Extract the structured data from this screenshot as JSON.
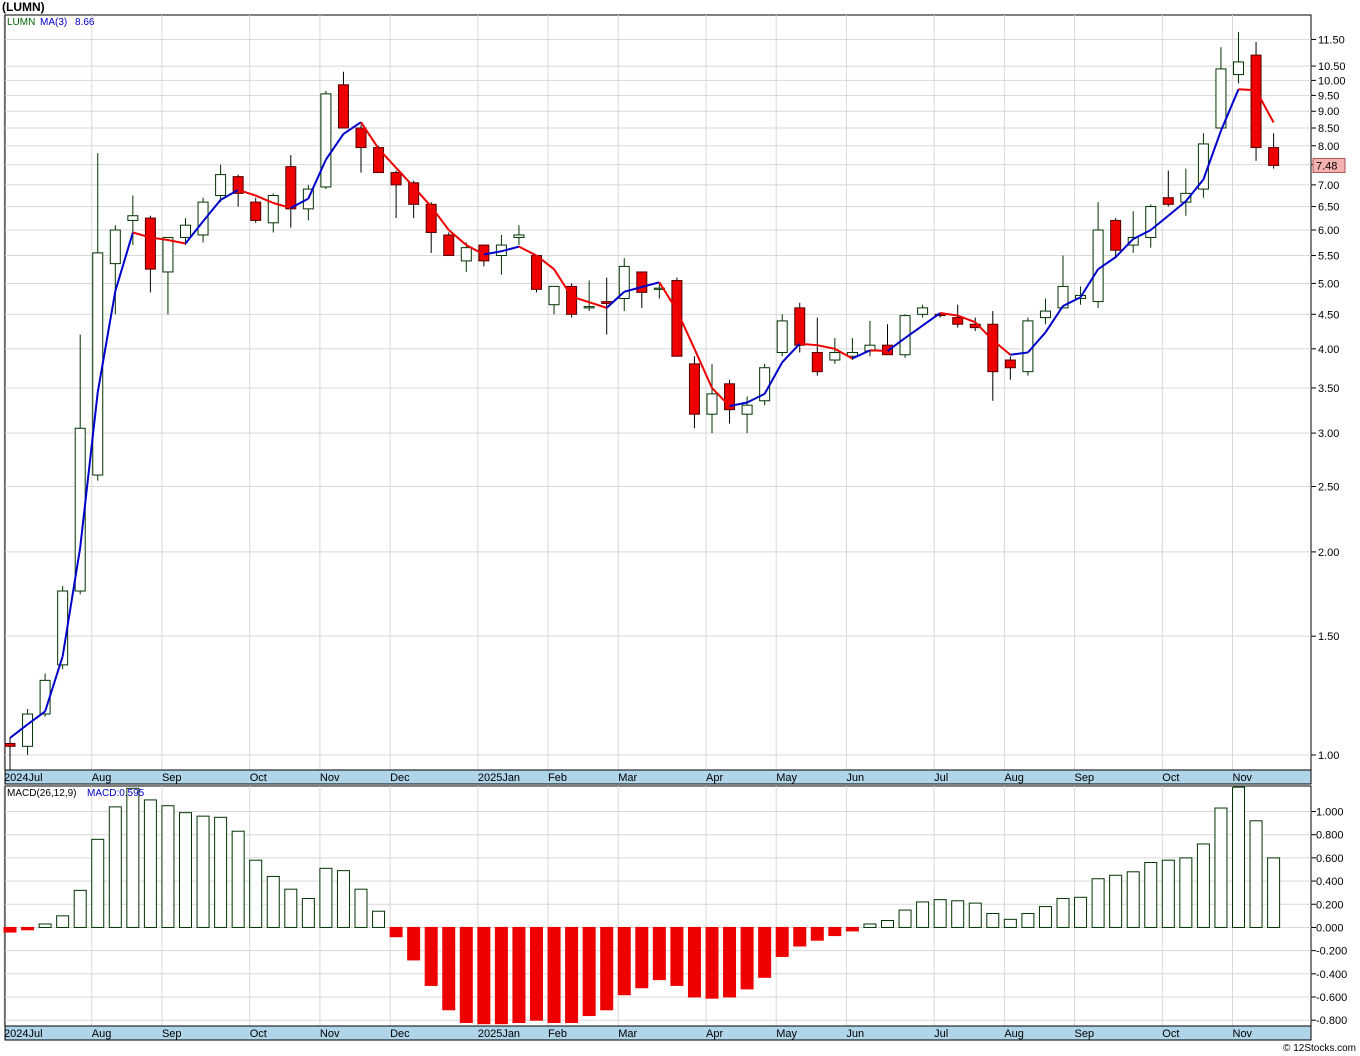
{
  "title": "(LUMN)",
  "footer": "© 12Stocks.com",
  "price_legend": {
    "symbol": "LUMN",
    "ma_label": "MA(3)",
    "ma_value": "8.66"
  },
  "macd_legend": {
    "label": "MACD(26,12,9)",
    "value_label": "MACD:0.595"
  },
  "last_price_label": "7.48",
  "colors": {
    "up": "#ffffff",
    "up_outline": "#003300",
    "down": "#ee0000",
    "ma_up": "#0000cc",
    "ma_down": "#ee0000",
    "axis_band": "#b0d4e8",
    "grid": "#d8d8d8",
    "price_tag": "#f5b0b0"
  },
  "chart_data": [
    {
      "type": "candlestick",
      "scale": "log",
      "ylim": [
        0.95,
        12.5
      ],
      "y_ticks": [
        1.0,
        1.5,
        2.0,
        2.5,
        3.0,
        3.5,
        4.0,
        4.5,
        5.0,
        5.5,
        6.0,
        6.5,
        7.0,
        7.5,
        8.0,
        8.5,
        9.0,
        9.5,
        10.0,
        10.5,
        11.5
      ],
      "y_tick_labels": [
        "1.00",
        "1.50",
        "2.00",
        "2.50",
        "3.00",
        "3.50",
        "4.00",
        "4.50",
        "5.00",
        "5.50",
        "6.00",
        "6.50",
        "7.00",
        "7.50",
        "8.00",
        "8.50",
        "9.00",
        "9.50",
        "10.00",
        "10.50",
        "11.50"
      ],
      "x_labels": [
        {
          "label": "2024Jul",
          "week": 0
        },
        {
          "label": "Aug",
          "week": 5
        },
        {
          "label": "Sep",
          "week": 9
        },
        {
          "label": "Oct",
          "week": 14
        },
        {
          "label": "Nov",
          "week": 18
        },
        {
          "label": "Dec",
          "week": 22
        },
        {
          "label": "2025Jan",
          "week": 27
        },
        {
          "label": "Feb",
          "week": 31
        },
        {
          "label": "Mar",
          "week": 35
        },
        {
          "label": "Apr",
          "week": 40
        },
        {
          "label": "May",
          "week": 44
        },
        {
          "label": "Jun",
          "week": 48
        },
        {
          "label": "Jul",
          "week": 53
        },
        {
          "label": "Aug",
          "week": 57
        },
        {
          "label": "Sep",
          "week": 61
        },
        {
          "label": "Oct",
          "week": 66
        },
        {
          "label": "Nov",
          "week": 70
        }
      ],
      "ohlc": [
        [
          1.04,
          1.06,
          0.95,
          1.03
        ],
        [
          1.03,
          1.17,
          1.0,
          1.15
        ],
        [
          1.15,
          1.32,
          1.14,
          1.29
        ],
        [
          1.36,
          1.78,
          1.34,
          1.75
        ],
        [
          1.75,
          4.2,
          1.73,
          3.05
        ],
        [
          2.6,
          7.8,
          2.55,
          5.55
        ],
        [
          5.35,
          6.1,
          4.5,
          6.0
        ],
        [
          6.2,
          6.75,
          5.7,
          6.3
        ],
        [
          6.25,
          6.3,
          4.85,
          5.25
        ],
        [
          5.2,
          5.8,
          4.5,
          5.85
        ],
        [
          5.85,
          6.25,
          5.7,
          6.1
        ],
        [
          5.9,
          6.7,
          5.75,
          6.6
        ],
        [
          6.75,
          7.5,
          6.6,
          7.25
        ],
        [
          7.2,
          7.25,
          6.5,
          6.8
        ],
        [
          6.6,
          6.7,
          6.15,
          6.2
        ],
        [
          6.15,
          6.8,
          5.95,
          6.75
        ],
        [
          7.45,
          7.75,
          6.05,
          6.45
        ],
        [
          6.45,
          7.0,
          6.2,
          6.9
        ],
        [
          6.95,
          9.65,
          6.9,
          9.55
        ],
        [
          9.85,
          10.3,
          8.6,
          8.5
        ],
        [
          8.5,
          8.6,
          7.3,
          7.95
        ],
        [
          7.95,
          8.0,
          7.3,
          7.3
        ],
        [
          7.3,
          7.35,
          6.25,
          7.0
        ],
        [
          7.05,
          7.1,
          6.25,
          6.55
        ],
        [
          6.55,
          6.6,
          5.55,
          5.95
        ],
        [
          5.9,
          5.95,
          5.5,
          5.5
        ],
        [
          5.4,
          5.75,
          5.2,
          5.65
        ],
        [
          5.7,
          5.7,
          5.3,
          5.4
        ],
        [
          5.5,
          5.9,
          5.15,
          5.7
        ],
        [
          5.85,
          6.1,
          5.7,
          5.9
        ],
        [
          5.5,
          5.5,
          4.85,
          4.9
        ],
        [
          4.65,
          4.95,
          4.5,
          4.95
        ],
        [
          4.95,
          5.0,
          4.45,
          4.5
        ],
        [
          4.6,
          5.05,
          4.55,
          4.62
        ],
        [
          4.7,
          5.1,
          4.2,
          4.67
        ],
        [
          4.75,
          5.45,
          4.55,
          5.3
        ],
        [
          5.2,
          5.2,
          4.6,
          4.85
        ],
        [
          4.9,
          5.0,
          4.75,
          4.92
        ],
        [
          5.05,
          5.1,
          3.9,
          3.9
        ],
        [
          3.8,
          3.9,
          3.05,
          3.2
        ],
        [
          3.2,
          3.8,
          3.0,
          3.43
        ],
        [
          3.55,
          3.6,
          3.1,
          3.25
        ],
        [
          3.2,
          3.4,
          3.0,
          3.3
        ],
        [
          3.35,
          3.8,
          3.3,
          3.75
        ],
        [
          3.95,
          4.5,
          3.9,
          4.4
        ],
        [
          4.6,
          4.68,
          3.95,
          4.05
        ],
        [
          3.95,
          4.45,
          3.65,
          3.7
        ],
        [
          3.85,
          4.15,
          3.8,
          3.95
        ],
        [
          3.9,
          4.15,
          3.85,
          3.95
        ],
        [
          3.97,
          4.4,
          3.9,
          4.05
        ],
        [
          4.05,
          4.35,
          3.92,
          3.92
        ],
        [
          3.92,
          4.5,
          3.88,
          4.48
        ],
        [
          4.5,
          4.65,
          4.45,
          4.6
        ],
        [
          4.5,
          4.5,
          4.45,
          4.48
        ],
        [
          4.45,
          4.65,
          4.3,
          4.35
        ],
        [
          4.35,
          4.45,
          4.25,
          4.3
        ],
        [
          4.35,
          4.55,
          3.35,
          3.7
        ],
        [
          3.85,
          3.9,
          3.6,
          3.75
        ],
        [
          3.7,
          4.45,
          3.65,
          4.4
        ],
        [
          4.45,
          4.75,
          4.35,
          4.55
        ],
        [
          4.6,
          5.5,
          4.6,
          4.95
        ],
        [
          4.75,
          4.95,
          4.65,
          4.8
        ],
        [
          4.7,
          6.6,
          4.6,
          6.0
        ],
        [
          6.2,
          6.25,
          5.45,
          5.6
        ],
        [
          5.7,
          6.4,
          5.55,
          5.85
        ],
        [
          5.85,
          6.55,
          5.65,
          6.5
        ],
        [
          6.7,
          7.35,
          6.5,
          6.55
        ],
        [
          6.6,
          7.4,
          6.3,
          6.8
        ],
        [
          6.9,
          8.35,
          6.7,
          8.05
        ],
        [
          8.5,
          11.2,
          8.5,
          10.4
        ],
        [
          10.2,
          11.8,
          9.9,
          10.65
        ],
        [
          10.9,
          11.4,
          7.6,
          7.95
        ],
        [
          7.95,
          8.35,
          7.4,
          7.48
        ]
      ],
      "ma": [
        1.06,
        1.11,
        1.16,
        1.4,
        2.03,
        3.45,
        4.87,
        5.95,
        5.85,
        5.8,
        5.73,
        6.18,
        6.65,
        6.88,
        6.75,
        6.58,
        6.47,
        6.68,
        7.63,
        8.33,
        8.67,
        7.92,
        7.42,
        6.95,
        6.5,
        6.0,
        5.7,
        5.52,
        5.58,
        5.67,
        5.5,
        5.25,
        4.78,
        4.69,
        4.6,
        4.86,
        4.94,
        5.02,
        4.56,
        4.0,
        3.5,
        3.29,
        3.33,
        3.43,
        3.82,
        4.07,
        4.05,
        4.0,
        3.87,
        3.98,
        3.97,
        4.15,
        4.33,
        4.52,
        4.48,
        4.38,
        4.12,
        3.92,
        3.95,
        4.23,
        4.63,
        4.77,
        5.25,
        5.47,
        5.82,
        6.0,
        6.3,
        6.62,
        7.13,
        8.42,
        9.7,
        9.67,
        8.66
      ]
    },
    {
      "type": "bar",
      "name": "MACD",
      "ylim": [
        -0.85,
        1.22
      ],
      "y_ticks": [
        -0.8,
        -0.6,
        -0.4,
        -0.2,
        0.0,
        0.2,
        0.4,
        0.6,
        0.8,
        1.0
      ],
      "y_tick_labels": [
        "-0.800",
        "-0.600",
        "-0.400",
        "-0.200",
        "0.000",
        "0.200",
        "0.400",
        "0.600",
        "0.800",
        "1.000"
      ],
      "values": [
        -0.04,
        -0.02,
        0.03,
        0.1,
        0.32,
        0.76,
        1.04,
        1.2,
        1.1,
        1.05,
        0.99,
        0.96,
        0.95,
        0.83,
        0.58,
        0.44,
        0.33,
        0.25,
        0.51,
        0.49,
        0.33,
        0.14,
        -0.08,
        -0.28,
        -0.5,
        -0.71,
        -0.82,
        -0.83,
        -0.83,
        -0.82,
        -0.8,
        -0.82,
        -0.82,
        -0.76,
        -0.71,
        -0.58,
        -0.52,
        -0.45,
        -0.5,
        -0.6,
        -0.61,
        -0.6,
        -0.53,
        -0.43,
        -0.25,
        -0.16,
        -0.11,
        -0.07,
        -0.03,
        0.03,
        0.06,
        0.15,
        0.22,
        0.24,
        0.23,
        0.21,
        0.12,
        0.07,
        0.12,
        0.18,
        0.25,
        0.26,
        0.42,
        0.45,
        0.48,
        0.56,
        0.58,
        0.6,
        0.72,
        1.03,
        1.21,
        0.92,
        0.6
      ]
    }
  ]
}
